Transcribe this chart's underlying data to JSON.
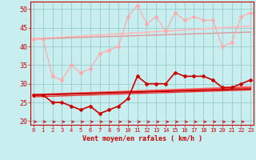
{
  "x": [
    0,
    1,
    2,
    3,
    4,
    5,
    6,
    7,
    8,
    9,
    10,
    11,
    12,
    13,
    14,
    15,
    16,
    17,
    18,
    19,
    20,
    21,
    22,
    23
  ],
  "bg_color": "#c8eef0",
  "grid_color": "#99cccc",
  "xlabel": "Vent moyen/en rafales ( km/h )",
  "ylim": [
    19,
    52
  ],
  "xlim": [
    -0.3,
    23.3
  ],
  "yticks": [
    20,
    25,
    30,
    35,
    40,
    45,
    50
  ],
  "series": {
    "upper_zigzag": {
      "color": "#ffaaaa",
      "lw": 0.9,
      "marker": "D",
      "ms": 2.0,
      "y": [
        42,
        42,
        32,
        31,
        35,
        33,
        34,
        38,
        39,
        40,
        48,
        51,
        46,
        48,
        44,
        49,
        47,
        48,
        47,
        47,
        40,
        41,
        48,
        49
      ]
    },
    "upper_trend1": {
      "color": "#ffbbbb",
      "lw": 1.3,
      "y": [
        42.0,
        42.15,
        42.3,
        42.45,
        42.6,
        42.75,
        42.9,
        43.05,
        43.2,
        43.35,
        43.5,
        43.65,
        43.8,
        43.95,
        44.1,
        44.25,
        44.4,
        44.55,
        44.7,
        44.85,
        45.0,
        45.15,
        45.3,
        45.45
      ]
    },
    "upper_trend2": {
      "color": "#dd9999",
      "lw": 1.0,
      "y": [
        42.0,
        42.08,
        42.16,
        42.24,
        42.32,
        42.4,
        42.48,
        42.56,
        42.64,
        42.72,
        42.8,
        42.88,
        42.96,
        43.04,
        43.12,
        43.2,
        43.28,
        43.36,
        43.44,
        43.52,
        43.6,
        43.68,
        43.76,
        43.84
      ]
    },
    "lower_zigzag": {
      "color": "#cc0000",
      "lw": 1.2,
      "marker": "D",
      "ms": 2.0,
      "y": [
        27,
        27,
        25,
        25,
        24,
        23,
        24,
        22,
        23,
        24,
        26,
        32,
        30,
        30,
        30,
        33,
        32,
        32,
        32,
        31,
        29,
        29,
        30,
        31
      ]
    },
    "lower_trend1": {
      "color": "#ff5555",
      "lw": 1.8,
      "y": [
        27.0,
        27.09,
        27.18,
        27.27,
        27.36,
        27.45,
        27.54,
        27.63,
        27.72,
        27.81,
        27.9,
        27.99,
        28.08,
        28.17,
        28.26,
        28.35,
        28.44,
        28.53,
        28.62,
        28.71,
        28.8,
        28.89,
        28.98,
        29.07
      ]
    },
    "lower_trend2": {
      "color": "#bb0000",
      "lw": 1.3,
      "y": [
        27.0,
        27.07,
        27.14,
        27.21,
        27.28,
        27.35,
        27.42,
        27.49,
        27.56,
        27.63,
        27.7,
        27.77,
        27.84,
        27.91,
        27.98,
        28.05,
        28.12,
        28.19,
        28.26,
        28.33,
        28.4,
        28.47,
        28.54,
        28.61
      ]
    },
    "lower_trend3": {
      "color": "#ee3333",
      "lw": 1.0,
      "y": [
        26.5,
        26.58,
        26.66,
        26.74,
        26.82,
        26.9,
        26.98,
        27.06,
        27.14,
        27.22,
        27.3,
        27.38,
        27.46,
        27.54,
        27.62,
        27.7,
        27.78,
        27.86,
        27.94,
        28.02,
        28.1,
        28.18,
        28.26,
        28.34
      ]
    }
  }
}
